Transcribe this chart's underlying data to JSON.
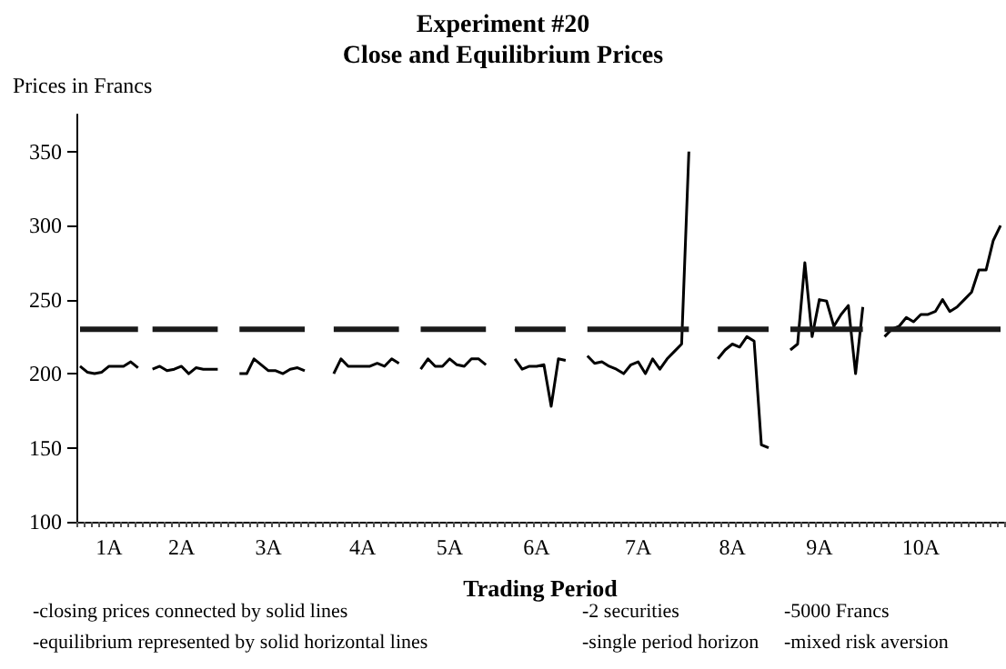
{
  "chart_data": {
    "type": "line",
    "title": "Experiment #20",
    "subtitle": "Close and Equilibrium Prices",
    "xlabel": "Trading Period",
    "ylabel": "Prices in Francs",
    "annotations": [
      "-closing prices connected by solid lines",
      "-equilibrium represented by solid horizontal lines",
      "-2 securities",
      "-single period horizon",
      "-5000 Francs",
      "-mixed risk aversion"
    ],
    "categories": [
      null,
      null,
      null,
      null,
      "1A",
      null,
      null,
      null,
      null,
      null,
      null,
      null,
      null,
      null,
      "2A",
      null,
      null,
      null,
      null,
      null,
      null,
      null,
      null,
      null,
      null,
      null,
      "3A",
      null,
      null,
      null,
      null,
      null,
      null,
      null,
      null,
      null,
      null,
      null,
      null,
      "4A",
      null,
      null,
      null,
      null,
      null,
      null,
      null,
      null,
      null,
      null,
      null,
      "5A",
      null,
      null,
      null,
      null,
      null,
      null,
      null,
      null,
      null,
      null,
      null,
      "6A",
      null,
      null,
      null,
      null,
      null,
      null,
      null,
      null,
      null,
      null,
      null,
      null,
      null,
      "7A",
      null,
      null,
      null,
      null,
      null,
      null,
      null,
      null,
      null,
      null,
      null,
      null,
      "8A",
      null,
      null,
      null,
      null,
      null,
      null,
      null,
      null,
      null,
      null,
      null,
      "9A",
      null,
      null,
      null,
      null,
      null,
      null,
      null,
      null,
      null,
      null,
      null,
      null,
      null,
      "10A",
      null,
      null,
      null,
      null,
      null,
      null,
      null,
      null,
      null,
      null,
      null
    ],
    "series": [
      {
        "color": "#000000",
        "values": [
          205,
          201,
          200,
          201,
          205,
          205,
          205,
          208,
          204,
          null,
          203,
          205,
          202,
          203,
          205,
          200,
          204,
          203,
          203,
          203,
          null,
          null,
          200,
          200,
          210,
          206,
          202,
          202,
          200,
          203,
          204,
          202,
          null,
          null,
          null,
          200,
          210,
          205,
          205,
          205,
          205,
          207,
          205,
          210,
          207,
          null,
          null,
          203,
          210,
          205,
          205,
          210,
          206,
          205,
          210,
          210,
          206,
          null,
          null,
          null,
          210,
          203,
          205,
          205,
          206,
          178,
          210,
          209,
          null,
          null,
          212,
          207,
          208,
          205,
          203,
          200,
          206,
          208,
          200,
          210,
          203,
          210,
          215,
          220,
          350,
          null,
          null,
          null,
          210,
          216,
          220,
          218,
          225,
          222,
          152,
          150,
          null,
          null,
          216,
          220,
          275,
          225,
          250,
          249,
          232,
          240,
          246,
          200,
          245,
          null,
          null,
          225,
          230,
          232,
          238,
          235,
          240,
          240,
          242,
          250,
          242,
          245,
          250,
          255,
          270,
          270,
          290,
          300
        ]
      },
      {
        "color": "#1a1a1a",
        "values": [
          230,
          230,
          230,
          230,
          230,
          230,
          230,
          230,
          230,
          null,
          230,
          230,
          230,
          230,
          230,
          230,
          230,
          230,
          230,
          230,
          null,
          null,
          230,
          230,
          230,
          230,
          230,
          230,
          230,
          230,
          230,
          230,
          null,
          null,
          null,
          230,
          230,
          230,
          230,
          230,
          230,
          230,
          230,
          230,
          230,
          null,
          null,
          230,
          230,
          230,
          230,
          230,
          230,
          230,
          230,
          230,
          230,
          null,
          null,
          null,
          230,
          230,
          230,
          230,
          230,
          230,
          230,
          230,
          null,
          null,
          230,
          230,
          230,
          230,
          230,
          230,
          230,
          230,
          230,
          230,
          230,
          230,
          230,
          230,
          230,
          null,
          null,
          null,
          230,
          230,
          230,
          230,
          230,
          230,
          230,
          230,
          null,
          null,
          230,
          230,
          230,
          230,
          230,
          230,
          230,
          230,
          230,
          230,
          230,
          null,
          null,
          230,
          230,
          230,
          230,
          230,
          230,
          230,
          230,
          230,
          230,
          230,
          230,
          230,
          230,
          230,
          230,
          230
        ]
      }
    ],
    "ylim": [
      100,
      375
    ],
    "yticks": [
      100,
      150,
      200,
      250,
      300,
      350
    ],
    "grid": false,
    "marker": "none",
    "line_style": "solid"
  }
}
